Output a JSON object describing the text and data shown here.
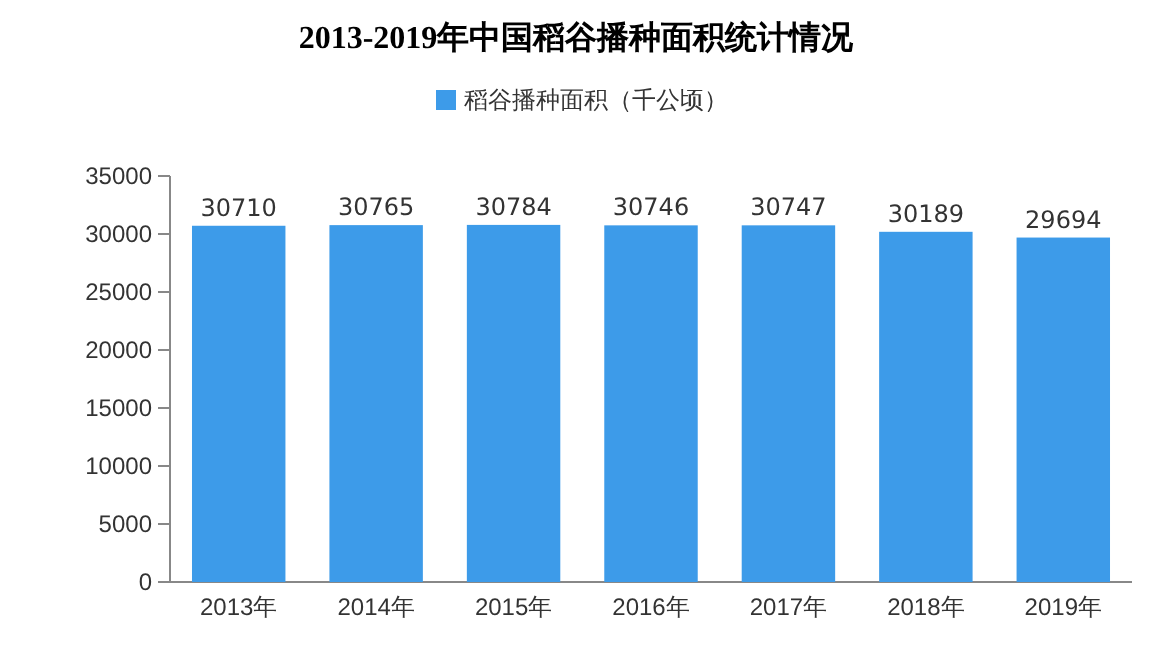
{
  "chart_data": {
    "type": "bar",
    "title": "2013-2019年中国稻谷播种面积统计情况",
    "categories": [
      "2013年",
      "2014年",
      "2015年",
      "2016年",
      "2017年",
      "2018年",
      "2019年"
    ],
    "series": [
      {
        "name": "稻谷播种面积（千公顷）",
        "color": "#3d9be9",
        "values": [
          30710,
          30765,
          30784,
          30746,
          30747,
          30189,
          29694
        ]
      }
    ],
    "ylim": [
      0,
      35000
    ],
    "yticks": [
      0,
      5000,
      10000,
      15000,
      20000,
      25000,
      30000,
      35000
    ],
    "data_labels": true,
    "legend": "top",
    "grid": false
  }
}
